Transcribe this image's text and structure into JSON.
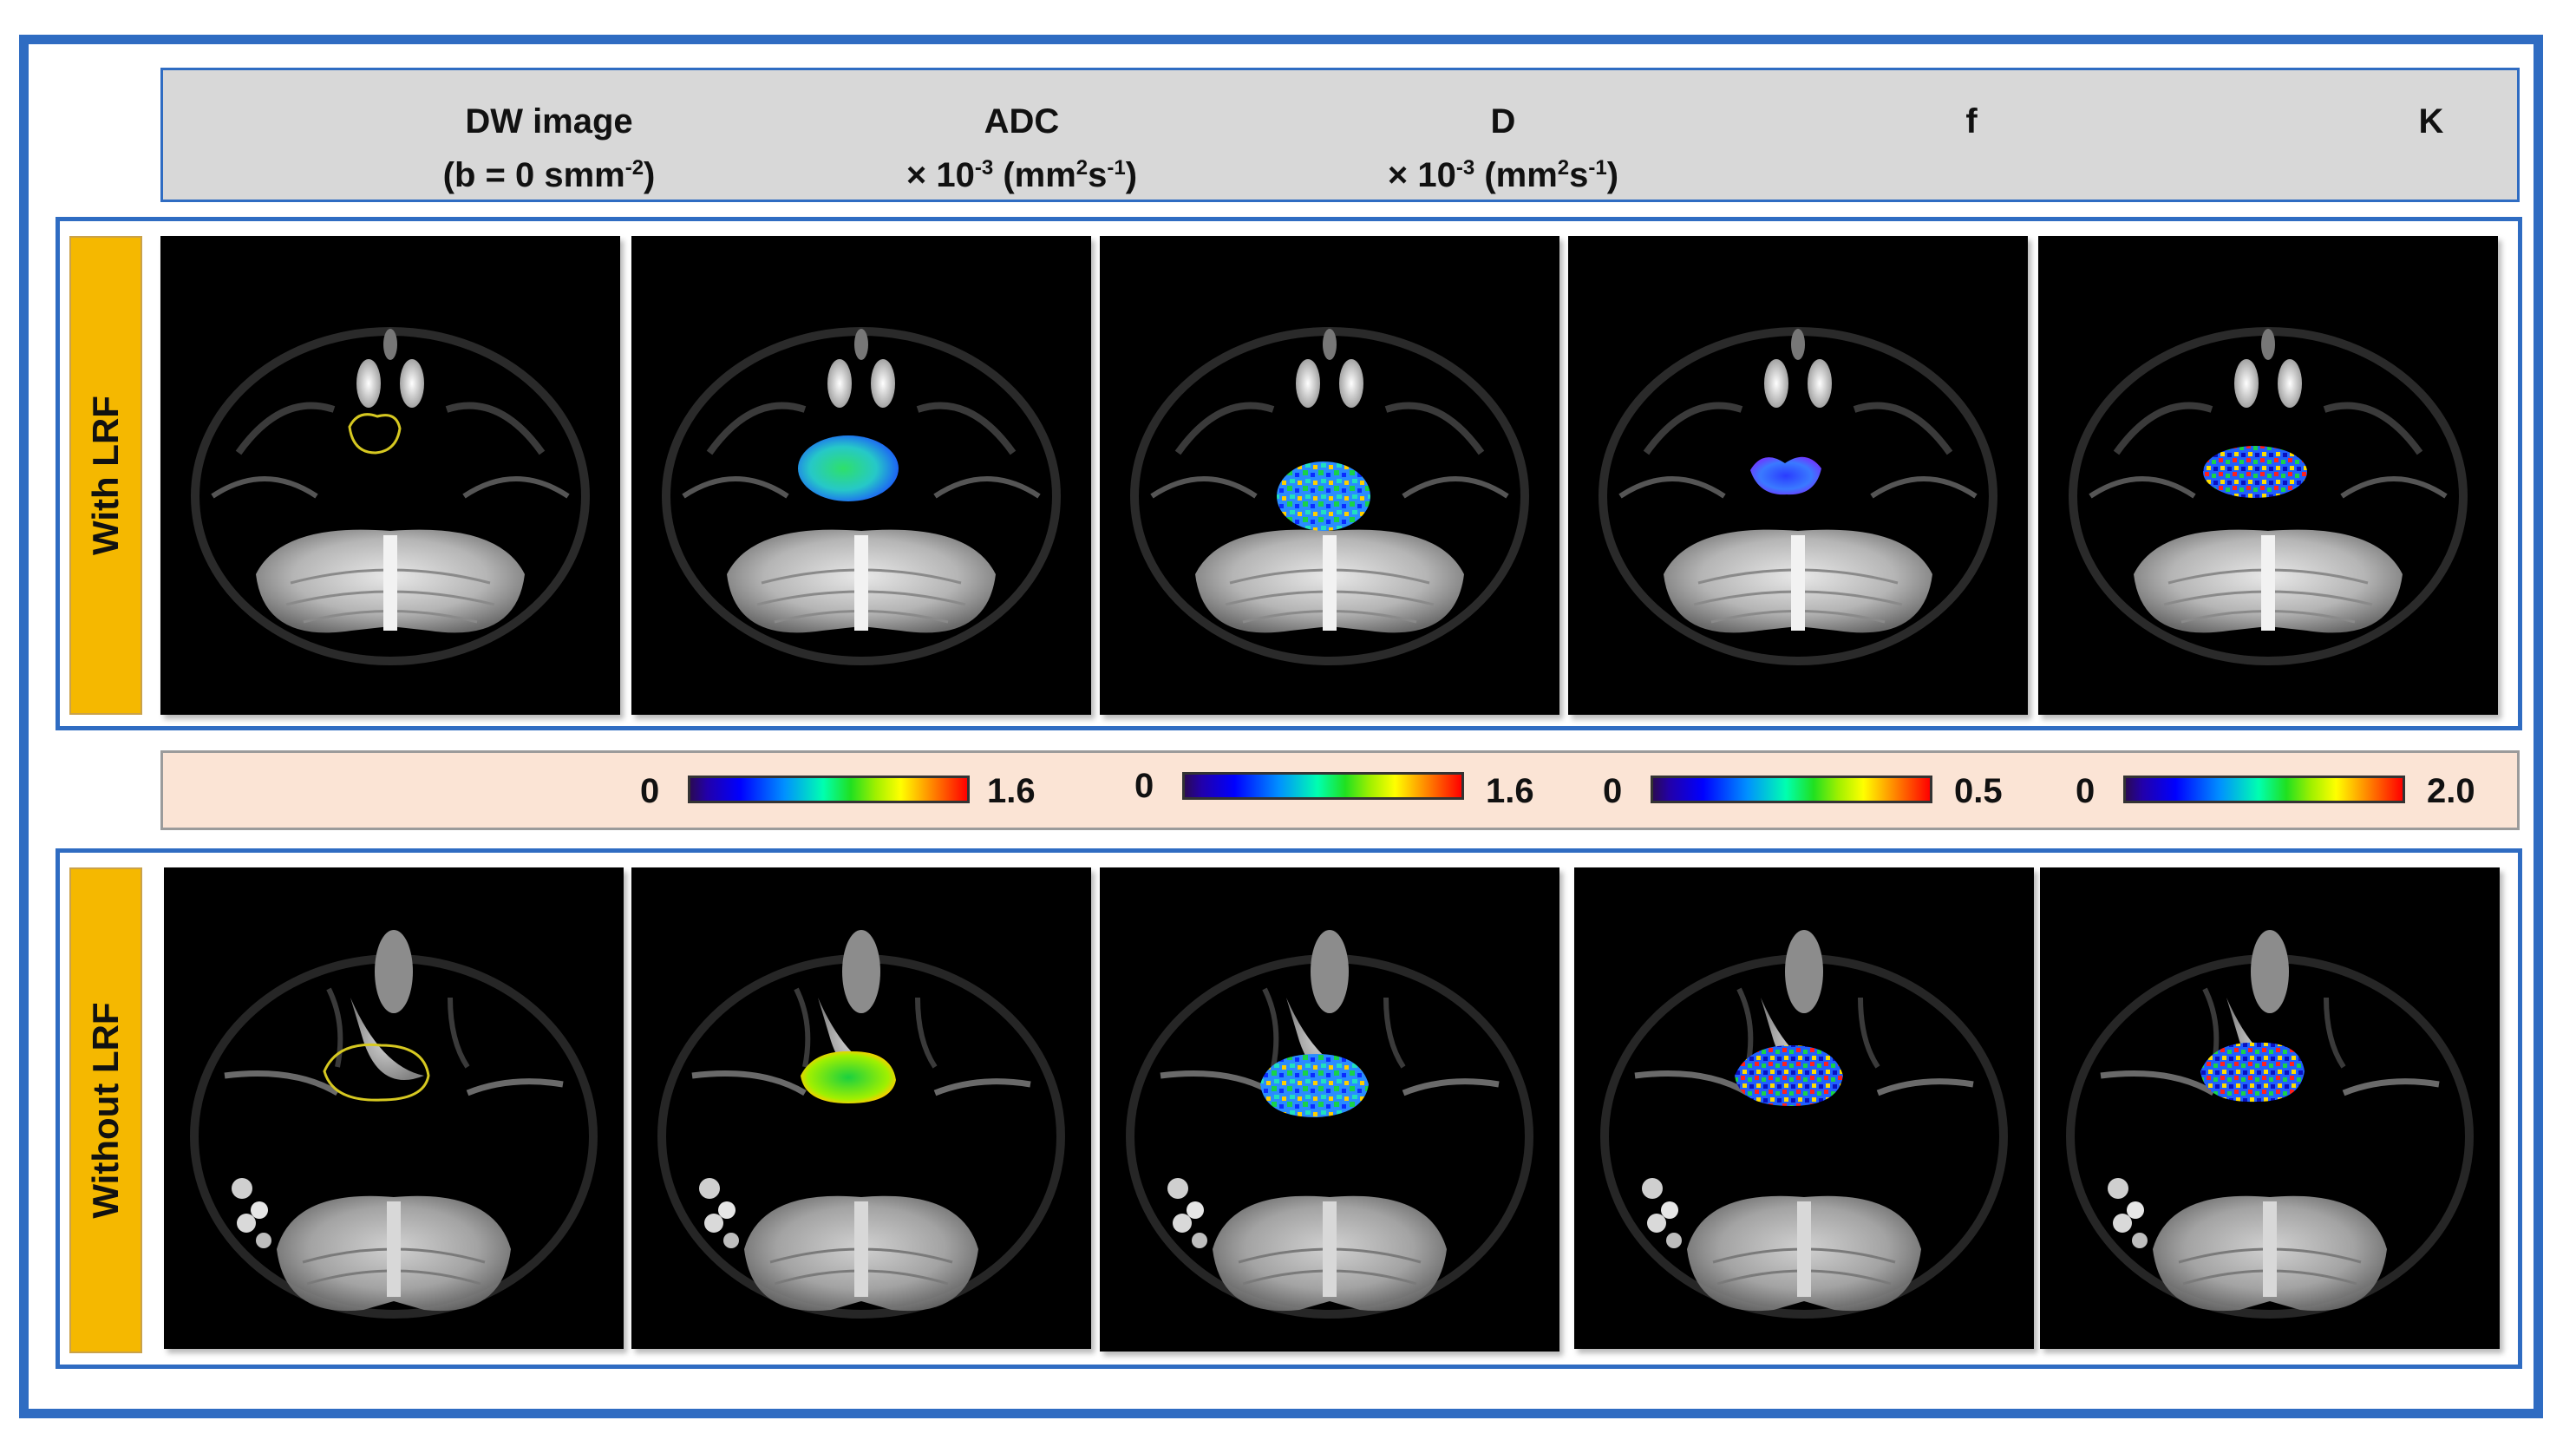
{
  "columns": {
    "dw": {
      "line1": "DW image",
      "line2_pre": "(b = 0 smm",
      "line2_sup": "-2",
      "line2_post": ")"
    },
    "adc": {
      "line1": "ADC",
      "line2_pre": "× 10",
      "line2_sup1": "-3",
      "line2_mid": " (mm",
      "line2_sup2": "2",
      "line2_mid2": "s",
      "line2_sup3": "-1",
      "line2_post": ")"
    },
    "d": {
      "line1": "D",
      "line2_pre": "× 10",
      "line2_sup1": "-3",
      "line2_mid": " (mm",
      "line2_sup2": "2",
      "line2_mid2": "s",
      "line2_sup3": "-1",
      "line2_post": ")"
    },
    "f": {
      "line1": "f"
    },
    "k": {
      "line1": "K"
    }
  },
  "rows": {
    "top": {
      "label": "With LRF"
    },
    "bottom": {
      "label": "Without  LRF"
    }
  },
  "colorbars": [
    {
      "min": "0",
      "max": "1.6"
    },
    {
      "min": "0",
      "max": "1.6"
    },
    {
      "min": "0",
      "max": "0.5"
    },
    {
      "min": "0",
      "max": "2.0"
    }
  ],
  "colors": {
    "frame": "#2f6cc2",
    "row_label_bg": "#f5b800",
    "header_bg": "#d8d8d8",
    "colorbar_strip_bg": "#fbe4d5",
    "roi_outline": "#d6c821"
  }
}
